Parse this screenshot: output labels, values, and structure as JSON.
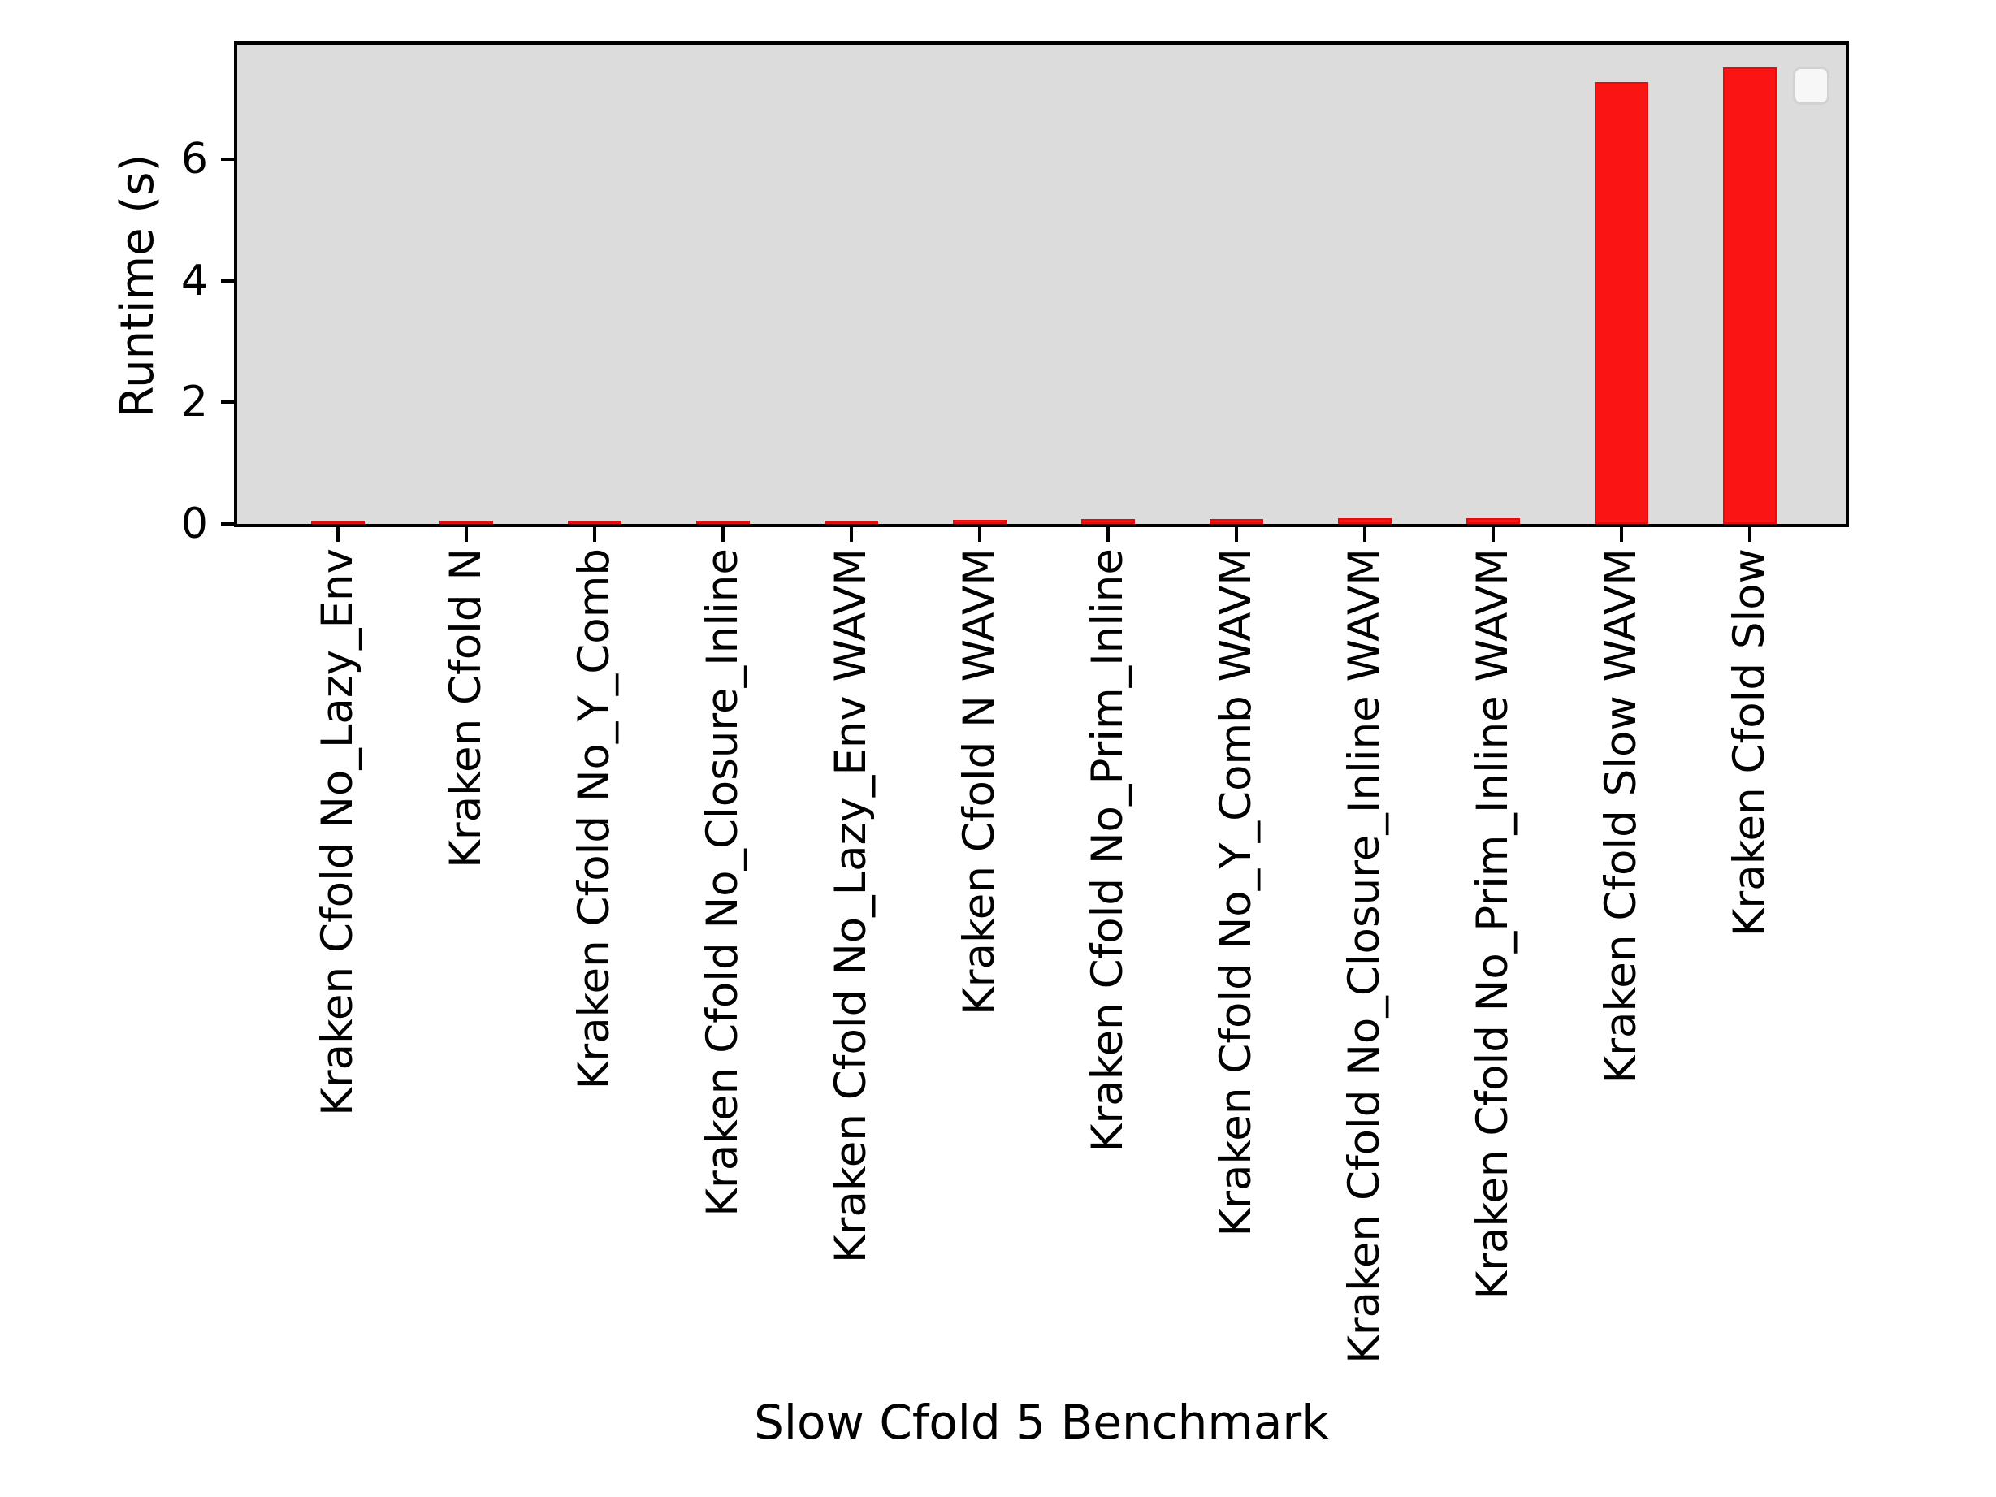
{
  "chart_data": {
    "type": "bar",
    "title": "",
    "xlabel": "Slow Cfold 5 Benchmark",
    "ylabel": "Runtime (s)",
    "categories": [
      "Kraken Cfold No_Lazy_Env",
      "Kraken Cfold N",
      "Kraken Cfold No_Y_Comb",
      "Kraken Cfold No_Closure_Inline",
      "Kraken Cfold No_Lazy_Env WAVM",
      "Kraken Cfold N WAVM",
      "Kraken Cfold No_Prim_Inline",
      "Kraken Cfold No_Y_Comb WAVM",
      "Kraken Cfold No_Closure_Inline WAVM",
      "Kraken Cfold No_Prim_Inline WAVM",
      "Kraken Cfold Slow WAVM",
      "Kraken Cfold Slow"
    ],
    "values": [
      0.05,
      0.05,
      0.05,
      0.06,
      0.06,
      0.07,
      0.08,
      0.08,
      0.09,
      0.1,
      7.27,
      7.51
    ],
    "yticks": [
      0,
      2,
      4,
      6
    ],
    "ylim": [
      0,
      7.92
    ],
    "grid": false,
    "legend": {
      "visible": true,
      "entries": [],
      "position": "upper right"
    },
    "colors": {
      "bar_fill": "#fa1414",
      "bar_edge": "#e00e0e",
      "plot_background": "#dcdcdc",
      "spine": "#000000",
      "figure_background": "#ffffff",
      "text": "#000000"
    }
  }
}
